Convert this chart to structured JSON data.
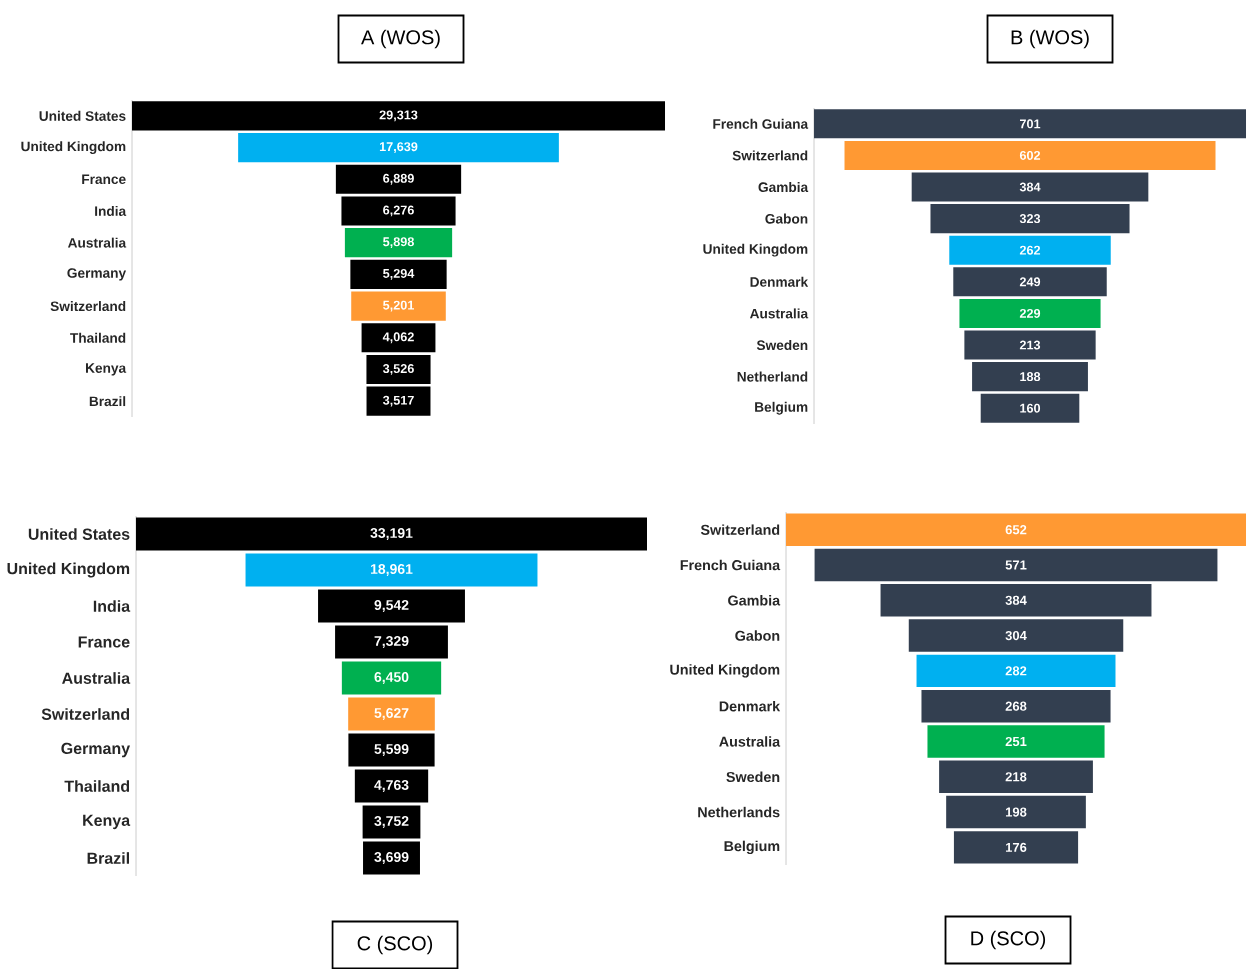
{
  "chart_data": [
    {
      "type": "other",
      "title": "A (WOS)",
      "categories": [
        "United States",
        "United Kingdom",
        "France",
        "India",
        "Australia",
        "Germany",
        "Switzerland",
        "Thailand",
        "Kenya",
        "Brazil"
      ],
      "values": [
        29313,
        17639,
        6889,
        6276,
        5898,
        5294,
        5201,
        4062,
        3526,
        3517
      ],
      "value_labels": [
        "29,313",
        "17,639",
        "6,889",
        "6,276",
        "5,898",
        "5,294",
        "5,201",
        "4,062",
        "3,526",
        "3,517"
      ],
      "colors": [
        "#000000",
        "#00b0f0",
        "#000000",
        "#000000",
        "#00b050",
        "#000000",
        "#ff9933",
        "#000000",
        "#000000",
        "#000000"
      ]
    },
    {
      "type": "other",
      "title": "B (WOS)",
      "categories": [
        "French Guiana",
        "Switzerland",
        "Gambia",
        "Gabon",
        "United Kingdom",
        "Denmark",
        "Australia",
        "Sweden",
        "Netherland",
        "Belgium"
      ],
      "values": [
        701,
        602,
        384,
        323,
        262,
        249,
        229,
        213,
        188,
        160
      ],
      "value_labels": [
        "701",
        "602",
        "384",
        "323",
        "262",
        "249",
        "229",
        "213",
        "188",
        "160"
      ],
      "colors": [
        "#333f50",
        "#ff9933",
        "#333f50",
        "#333f50",
        "#00b0f0",
        "#333f50",
        "#00b050",
        "#333f50",
        "#333f50",
        "#333f50"
      ]
    },
    {
      "type": "other",
      "title": "C (SCO)",
      "categories": [
        "United States",
        "United Kingdom",
        "India",
        "France",
        "Australia",
        "Switzerland",
        "Germany",
        "Thailand",
        "Kenya",
        "Brazil"
      ],
      "values": [
        33191,
        18961,
        9542,
        7329,
        6450,
        5627,
        5599,
        4763,
        3752,
        3699
      ],
      "value_labels": [
        "33,191",
        "18,961",
        "9,542",
        "7,329",
        "6,450",
        "5,627",
        "5,599",
        "4,763",
        "3,752",
        "3,699"
      ],
      "colors": [
        "#000000",
        "#00b0f0",
        "#000000",
        "#000000",
        "#00b050",
        "#ff9933",
        "#000000",
        "#000000",
        "#000000",
        "#000000"
      ]
    },
    {
      "type": "other",
      "title": "D (SCO)",
      "categories": [
        "Switzerland",
        "French Guiana",
        "Gambia",
        "Gabon",
        "United Kingdom",
        "Denmark",
        "Australia",
        "Sweden",
        "Netherlands",
        "Belgium"
      ],
      "values": [
        652,
        571,
        384,
        304,
        282,
        268,
        251,
        218,
        198,
        176
      ],
      "value_labels": [
        "652",
        "571",
        "384",
        "304",
        "282",
        "268",
        "251",
        "218",
        "198",
        "176"
      ],
      "colors": [
        "#ff9933",
        "#333f50",
        "#333f50",
        "#333f50",
        "#00b0f0",
        "#333f50",
        "#00b050",
        "#333f50",
        "#333f50",
        "#333f50"
      ]
    }
  ]
}
